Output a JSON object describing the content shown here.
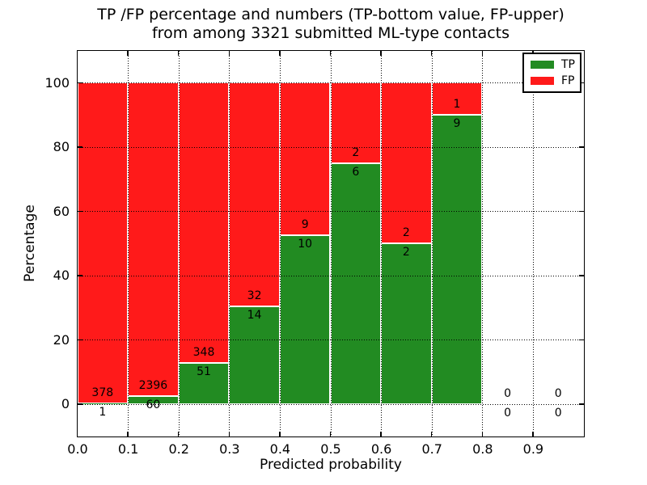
{
  "chart_data": {
    "type": "bar",
    "stacked": true,
    "title_line1": "TP /FP percentage and numbers (TP-bottom value, FP-upper)",
    "title_line2": "from among 3321 submitted ML-type contacts",
    "xlabel": "Predicted probability",
    "ylabel": "Percentage",
    "xlim": [
      0.0,
      1.0
    ],
    "ylim": [
      -10,
      110
    ],
    "x_ticks": [
      "0.0",
      "0.1",
      "0.2",
      "0.3",
      "0.4",
      "0.5",
      "0.6",
      "0.7",
      "0.8",
      "0.9"
    ],
    "y_ticks": [
      0,
      20,
      40,
      60,
      80,
      100
    ],
    "grid": "dotted",
    "legend_position": "upper right",
    "legend": [
      {
        "label": "TP",
        "color": "#228b22"
      },
      {
        "label": "FP",
        "color": "#ff1a1a"
      }
    ],
    "bins": [
      {
        "x_start": 0.0,
        "x_end": 0.1,
        "tp": 1,
        "fp": 378
      },
      {
        "x_start": 0.1,
        "x_end": 0.2,
        "tp": 60,
        "fp": 2396
      },
      {
        "x_start": 0.2,
        "x_end": 0.3,
        "tp": 51,
        "fp": 348
      },
      {
        "x_start": 0.3,
        "x_end": 0.4,
        "tp": 14,
        "fp": 32
      },
      {
        "x_start": 0.4,
        "x_end": 0.5,
        "tp": 10,
        "fp": 9
      },
      {
        "x_start": 0.5,
        "x_end": 0.6,
        "tp": 6,
        "fp": 2
      },
      {
        "x_start": 0.6,
        "x_end": 0.7,
        "tp": 2,
        "fp": 2
      },
      {
        "x_start": 0.7,
        "x_end": 0.8,
        "tp": 9,
        "fp": 1
      },
      {
        "x_start": 0.8,
        "x_end": 0.9,
        "tp": 0,
        "fp": 0
      },
      {
        "x_start": 0.9,
        "x_end": 1.0,
        "tp": 0,
        "fp": 0
      }
    ]
  }
}
